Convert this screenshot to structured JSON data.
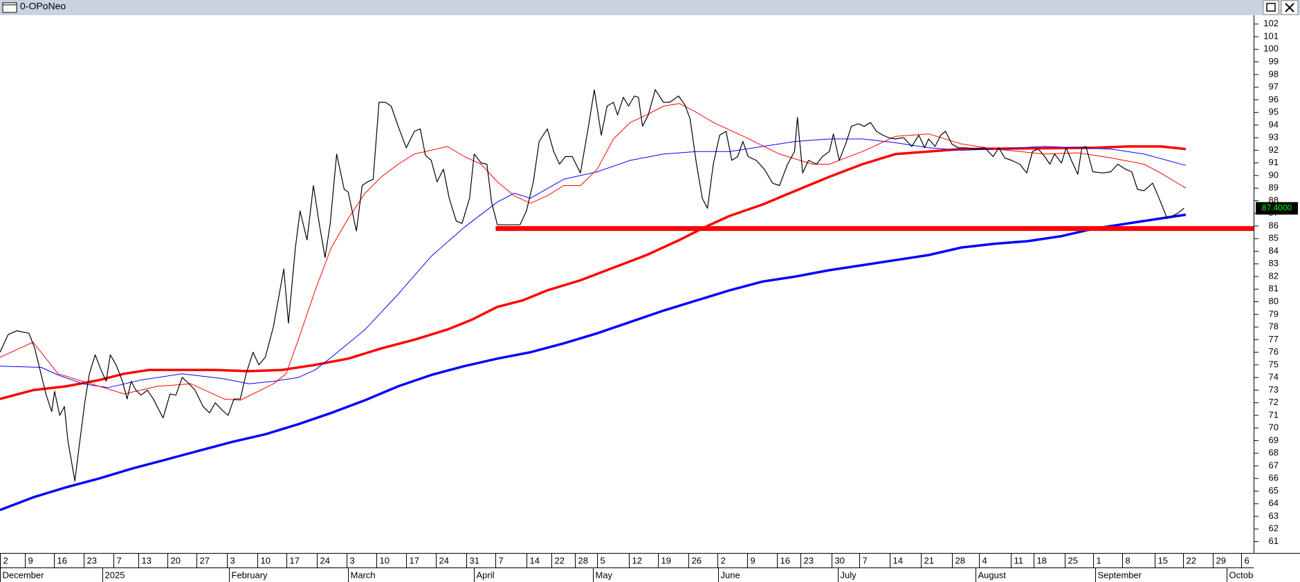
{
  "chart_data": {
    "type": "line",
    "title": "0-OPoNeo",
    "xlim": [
      0,
      216
    ],
    "ylim": [
      60.1,
      102.7
    ],
    "yticks": [
      61,
      62,
      63,
      64,
      65,
      66,
      67,
      68,
      69,
      70,
      71,
      72,
      73,
      74,
      75,
      76,
      77,
      78,
      79,
      80,
      81,
      82,
      83,
      84,
      85,
      86,
      87,
      88,
      89,
      90,
      91,
      92,
      93,
      94,
      95,
      96,
      97,
      98,
      99,
      100,
      101,
      102
    ],
    "xticks": [
      {
        "value": 0,
        "label": "2"
      },
      {
        "value": 4.3,
        "label": "9"
      },
      {
        "value": 9.3,
        "label": "16"
      },
      {
        "value": 14.4,
        "label": "23"
      },
      {
        "value": 19.6,
        "label": "7"
      },
      {
        "value": 23.9,
        "label": "13"
      },
      {
        "value": 28.9,
        "label": "20"
      },
      {
        "value": 33.9,
        "label": "27"
      },
      {
        "value": 39.1,
        "label": "3"
      },
      {
        "value": 44.3,
        "label": "10"
      },
      {
        "value": 49.4,
        "label": "17"
      },
      {
        "value": 54.6,
        "label": "24"
      },
      {
        "value": 59.7,
        "label": "3"
      },
      {
        "value": 64.9,
        "label": "10"
      },
      {
        "value": 70,
        "label": "17"
      },
      {
        "value": 75.1,
        "label": "24"
      },
      {
        "value": 80.4,
        "label": "31"
      },
      {
        "value": 85.4,
        "label": "7"
      },
      {
        "value": 90.7,
        "label": "14"
      },
      {
        "value": 95,
        "label": "22"
      },
      {
        "value": 99.1,
        "label": "28"
      },
      {
        "value": 102.9,
        "label": "5"
      },
      {
        "value": 108.3,
        "label": "12"
      },
      {
        "value": 113.4,
        "label": "19"
      },
      {
        "value": 118.6,
        "label": "26"
      },
      {
        "value": 123.6,
        "label": "2"
      },
      {
        "value": 128.7,
        "label": "9"
      },
      {
        "value": 133.9,
        "label": "16"
      },
      {
        "value": 137.9,
        "label": "23"
      },
      {
        "value": 143.3,
        "label": "30"
      },
      {
        "value": 148.1,
        "label": "7"
      },
      {
        "value": 153.3,
        "label": "14"
      },
      {
        "value": 158.7,
        "label": "21"
      },
      {
        "value": 164,
        "label": "28"
      },
      {
        "value": 168.7,
        "label": "4"
      },
      {
        "value": 174.1,
        "label": "11"
      },
      {
        "value": 178.1,
        "label": "18"
      },
      {
        "value": 183.4,
        "label": "25"
      },
      {
        "value": 188.3,
        "label": "1"
      },
      {
        "value": 193.3,
        "label": "8"
      },
      {
        "value": 198.9,
        "label": "15"
      },
      {
        "value": 203.9,
        "label": "22"
      },
      {
        "value": 209,
        "label": "29"
      },
      {
        "value": 213.9,
        "label": "6"
      }
    ],
    "xticks_major": [
      {
        "value": 0,
        "label": "December"
      },
      {
        "value": 17.7,
        "label": "2025"
      },
      {
        "value": 39.4,
        "label": "February"
      },
      {
        "value": 60,
        "label": "March"
      },
      {
        "value": 81.6,
        "label": "April"
      },
      {
        "value": 102.1,
        "label": "May"
      },
      {
        "value": 123.7,
        "label": "June"
      },
      {
        "value": 144.4,
        "label": "July"
      },
      {
        "value": 168.1,
        "label": "August"
      },
      {
        "value": 188.7,
        "label": "September"
      },
      {
        "value": 211.4,
        "label": "October"
      }
    ],
    "series": [
      {
        "color": "#0000ff",
        "line_width": 3.5,
        "x": [
          0,
          5.7,
          11.4,
          17.1,
          22.9,
          28.6,
          34.3,
          40,
          45.7,
          51.4,
          57.1,
          62.9,
          68.6,
          74.3,
          80,
          85.7,
          91.4,
          97.1,
          102.9,
          108.6,
          114.3,
          120,
          125.7,
          131.4,
          137.1,
          142.9,
          148.6,
          154.3,
          160,
          165.7,
          171.4,
          177.1,
          182.9,
          188.6,
          194.3,
          200,
          204.3
        ],
        "values": [
          63.5,
          64.5,
          65.3,
          66.0,
          66.8,
          67.5,
          68.2,
          68.9,
          69.5,
          70.3,
          71.2,
          72.2,
          73.3,
          74.2,
          74.9,
          75.5,
          76.0,
          76.7,
          77.5,
          78.4,
          79.3,
          80.1,
          80.9,
          81.6,
          82.0,
          82.5,
          82.9,
          83.3,
          83.7,
          84.3,
          84.6,
          84.8,
          85.2,
          85.8,
          86.2,
          86.6,
          86.9
        ]
      },
      {
        "color": "#ff0000",
        "line_width": 3.5,
        "x": [
          0,
          5.7,
          11.4,
          17.1,
          21.4,
          25.7,
          37.1,
          42.9,
          48.6,
          54.3,
          60,
          65.7,
          71.4,
          77.1,
          81.4,
          85.7,
          90,
          94.3,
          100,
          105.7,
          111.4,
          117.1,
          121.4,
          125.7,
          131.4,
          137.1,
          142.9,
          148.6,
          154.3,
          160,
          165.7,
          188.6,
          194.3,
          200,
          204.3
        ],
        "values": [
          72.3,
          73.0,
          73.3,
          73.8,
          74.3,
          74.6,
          74.6,
          74.5,
          74.6,
          75.0,
          75.5,
          76.3,
          77.0,
          77.8,
          78.6,
          79.6,
          80.1,
          80.9,
          81.7,
          82.7,
          83.7,
          84.9,
          85.9,
          86.8,
          87.7,
          88.8,
          89.9,
          90.9,
          91.7,
          91.9,
          92.1,
          92.2,
          92.3,
          92.3,
          92.1
        ]
      },
      {
        "color": "#0000ff",
        "line_width": 1,
        "x": [
          0,
          7.1,
          10,
          14.3,
          18.6,
          24.3,
          31.4,
          38.6,
          42.9,
          47.1,
          51.4,
          54.3,
          57.1,
          62.9,
          68.6,
          74.3,
          80,
          85.7,
          88.6,
          91.4,
          97.1,
          102.9,
          108.6,
          114.3,
          120,
          125.7,
          131.4,
          137.1,
          142.9,
          148.6,
          154.3,
          160,
          165.7,
          171.4,
          180,
          185.7,
          191.4,
          197.1,
          204.3
        ],
        "values": [
          74.9,
          74.8,
          74.2,
          73.5,
          73.2,
          73.8,
          74.3,
          73.9,
          73.5,
          73.7,
          74.0,
          74.6,
          75.6,
          77.8,
          80.6,
          83.6,
          85.9,
          87.9,
          88.6,
          88.2,
          89.7,
          90.3,
          91.2,
          91.7,
          91.9,
          91.9,
          92.3,
          92.7,
          92.9,
          92.9,
          92.6,
          92.2,
          92.0,
          92.1,
          92.3,
          92.2,
          92.1,
          91.7,
          90.8
        ]
      },
      {
        "color": "#ff0000",
        "line_width": 1,
        "x": [
          0,
          5.7,
          10,
          15.7,
          21.4,
          27.1,
          32.9,
          38.6,
          41.4,
          47.1,
          49.3,
          51.4,
          54.3,
          57.1,
          60,
          62.9,
          65.7,
          68.6,
          71.4,
          77.1,
          80,
          82.9,
          85.7,
          88.6,
          91.4,
          94.3,
          97.1,
          100,
          102.9,
          105.7,
          108.6,
          111.4,
          114.3,
          117.1,
          120,
          122.9,
          128.6,
          134.3,
          140,
          142.9,
          148.6,
          154.3,
          160,
          165.7,
          171.4,
          180,
          185.7,
          191.4,
          197.1,
          200,
          204.3
        ],
        "values": [
          75.6,
          76.8,
          74.3,
          73.5,
          72.7,
          73.3,
          73.5,
          72.3,
          72.2,
          73.5,
          74.3,
          77.0,
          80.9,
          84.3,
          86.6,
          88.6,
          89.9,
          90.9,
          91.7,
          92.3,
          91.5,
          90.9,
          89.5,
          88.4,
          87.8,
          88.4,
          89.2,
          89.2,
          90.5,
          92.9,
          94.2,
          94.8,
          95.5,
          95.7,
          95.0,
          94.2,
          93.0,
          91.7,
          90.9,
          90.9,
          91.9,
          93.1,
          93.3,
          92.5,
          92.1,
          91.7,
          91.8,
          91.4,
          90.9,
          90.2,
          89.0
        ]
      },
      {
        "color": "#000000",
        "line_width": 1.2,
        "x": [
          0,
          1.4,
          2.9,
          5,
          6,
          7.9,
          8.9,
          9.4,
          10.3,
          11.1,
          11.7,
          12.9,
          13.6,
          14.6,
          15.4,
          16.4,
          17.4,
          18.3,
          19,
          20,
          21.1,
          21.9,
          22.6,
          23.4,
          24.3,
          25.4,
          26.4,
          28.1,
          29.3,
          30.3,
          31.4,
          32.6,
          33.6,
          35,
          36.1,
          37.1,
          38.3,
          39.3,
          40.3,
          41.4,
          42.4,
          43.6,
          44.6,
          45.7,
          47.1,
          48.9,
          49.7,
          50.9,
          51.7,
          52.9,
          54,
          55,
          56,
          56.9,
          58,
          59.3,
          60,
          61.4,
          62.4,
          63.3,
          64.3,
          65.3,
          66.4,
          67.4,
          68.6,
          70,
          71.4,
          72.4,
          73.3,
          74.3,
          75.3,
          76.4,
          77.4,
          78.6,
          79.6,
          80.9,
          81.7,
          82.9,
          83.9,
          84.7,
          85.7,
          89.6,
          90.7,
          91.9,
          92.9,
          94.3,
          95.4,
          96.4,
          97.4,
          98.6,
          100,
          101.4,
          102.4,
          103.6,
          104.6,
          105.7,
          106.4,
          107.4,
          108.3,
          109.3,
          110,
          110.7,
          111.7,
          112.9,
          114.3,
          115.4,
          116.9,
          118,
          118.9,
          120,
          121,
          121.9,
          122.9,
          124,
          125.1,
          126.1,
          127.1,
          128,
          128.9,
          130.3,
          131.7,
          133.1,
          134.3,
          135.7,
          136.9,
          137.4,
          138.3,
          139.3,
          140.7,
          141.7,
          142.9,
          143.6,
          144.6,
          145.7,
          146.7,
          147.9,
          148.9,
          150,
          151,
          152.1,
          153.1,
          154.3,
          155.7,
          157.1,
          158.3,
          159.3,
          160,
          161.1,
          162.1,
          162.9,
          164,
          165.1,
          166.4,
          167.9,
          169.7,
          171.1,
          172.1,
          173.1,
          174.3,
          175.7,
          176.9,
          177.9,
          178.9,
          180,
          180.9,
          181.7,
          182.9,
          183.7,
          184.6,
          185.7,
          186.4,
          187.1,
          188.3,
          190,
          191.4,
          192.6,
          193.9,
          195,
          196,
          197.1,
          198.6,
          199.7,
          201.1,
          202.9,
          204
        ],
        "values": [
          76.0,
          77.4,
          77.7,
          77.5,
          76.3,
          72.7,
          71.3,
          72.9,
          71.0,
          71.7,
          69.0,
          65.8,
          68.4,
          72.0,
          74.3,
          75.8,
          74.6,
          73.7,
          75.8,
          75.0,
          73.7,
          72.3,
          73.7,
          73.0,
          72.6,
          73.0,
          72.3,
          70.8,
          72.7,
          72.6,
          74.0,
          73.5,
          73.0,
          71.7,
          71.2,
          72.0,
          71.4,
          71.0,
          72.3,
          72.3,
          74.3,
          76.0,
          75.0,
          75.6,
          78.0,
          82.6,
          78.3,
          84.3,
          87.2,
          84.9,
          89.2,
          86.2,
          83.5,
          86.2,
          91.7,
          88.9,
          88.7,
          85.6,
          89.2,
          89.5,
          89.7,
          95.8,
          95.8,
          95.5,
          93.9,
          92.2,
          93.5,
          93.7,
          91.6,
          91.2,
          89.5,
          90.5,
          88.2,
          86.4,
          86.2,
          88.2,
          91.7,
          91.0,
          90.9,
          87.9,
          86.1,
          86.1,
          87.2,
          89.5,
          92.7,
          93.7,
          91.9,
          90.9,
          91.5,
          91.5,
          90.2,
          93.9,
          96.8,
          93.2,
          95.5,
          95.8,
          94.8,
          96.2,
          95.5,
          96.3,
          96.2,
          93.9,
          94.8,
          96.8,
          95.8,
          95.8,
          96.3,
          95.6,
          94.5,
          90.9,
          88.2,
          87.4,
          90.9,
          93.2,
          93.5,
          91.2,
          91.5,
          92.7,
          91.5,
          91.2,
          90.5,
          89.4,
          89.2,
          90.9,
          91.9,
          94.6,
          90.2,
          91.2,
          90.9,
          91.5,
          91.9,
          93.3,
          91.2,
          92.5,
          93.9,
          94.1,
          93.9,
          94.2,
          93.5,
          93.2,
          93.0,
          92.9,
          93.0,
          92.3,
          93.2,
          92.2,
          92.9,
          92.3,
          93.2,
          93.5,
          92.5,
          92.2,
          92.2,
          92.1,
          92.2,
          91.5,
          92.2,
          91.4,
          91.2,
          90.9,
          90.2,
          91.9,
          92.1,
          91.5,
          90.9,
          91.7,
          91.0,
          92.2,
          91.2,
          90.1,
          92.2,
          92.3,
          90.3,
          90.2,
          90.3,
          90.9,
          90.5,
          90.3,
          88.9,
          88.8,
          89.4,
          88.2,
          86.6,
          87.0,
          87.4
        ]
      }
    ],
    "hline": {
      "value": 85.8,
      "start": 85.4,
      "color": "#ff0000"
    },
    "last_label": {
      "value": 87.4,
      "label": "87.4000"
    }
  }
}
